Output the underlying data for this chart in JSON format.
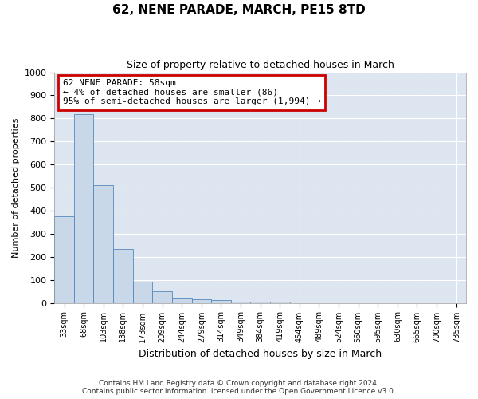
{
  "title": "62, NENE PARADE, MARCH, PE15 8TD",
  "subtitle": "Size of property relative to detached houses in March",
  "xlabel": "Distribution of detached houses by size in March",
  "ylabel": "Number of detached properties",
  "bar_color": "#c8d8e8",
  "bar_edge_color": "#5588bb",
  "background_color": "#dde6f0",
  "categories": [
    "33sqm",
    "68sqm",
    "103sqm",
    "138sqm",
    "173sqm",
    "209sqm",
    "244sqm",
    "279sqm",
    "314sqm",
    "349sqm",
    "384sqm",
    "419sqm",
    "454sqm",
    "489sqm",
    "524sqm",
    "560sqm",
    "595sqm",
    "630sqm",
    "665sqm",
    "700sqm",
    "735sqm"
  ],
  "values": [
    375,
    820,
    510,
    235,
    92,
    50,
    20,
    17,
    12,
    7,
    5,
    5,
    0,
    0,
    0,
    0,
    0,
    0,
    0,
    0,
    0
  ],
  "ylim": [
    0,
    1000
  ],
  "yticks": [
    0,
    100,
    200,
    300,
    400,
    500,
    600,
    700,
    800,
    900,
    1000
  ],
  "annotation_title": "62 NENE PARADE: 58sqm",
  "annotation_line1": "← 4% of detached houses are smaller (86)",
  "annotation_line2": "95% of semi-detached houses are larger (1,994) →",
  "annotation_box_color": "#ffffff",
  "annotation_box_edge": "#cc0000",
  "footnote1": "Contains HM Land Registry data © Crown copyright and database right 2024.",
  "footnote2": "Contains public sector information licensed under the Open Government Licence v3.0."
}
